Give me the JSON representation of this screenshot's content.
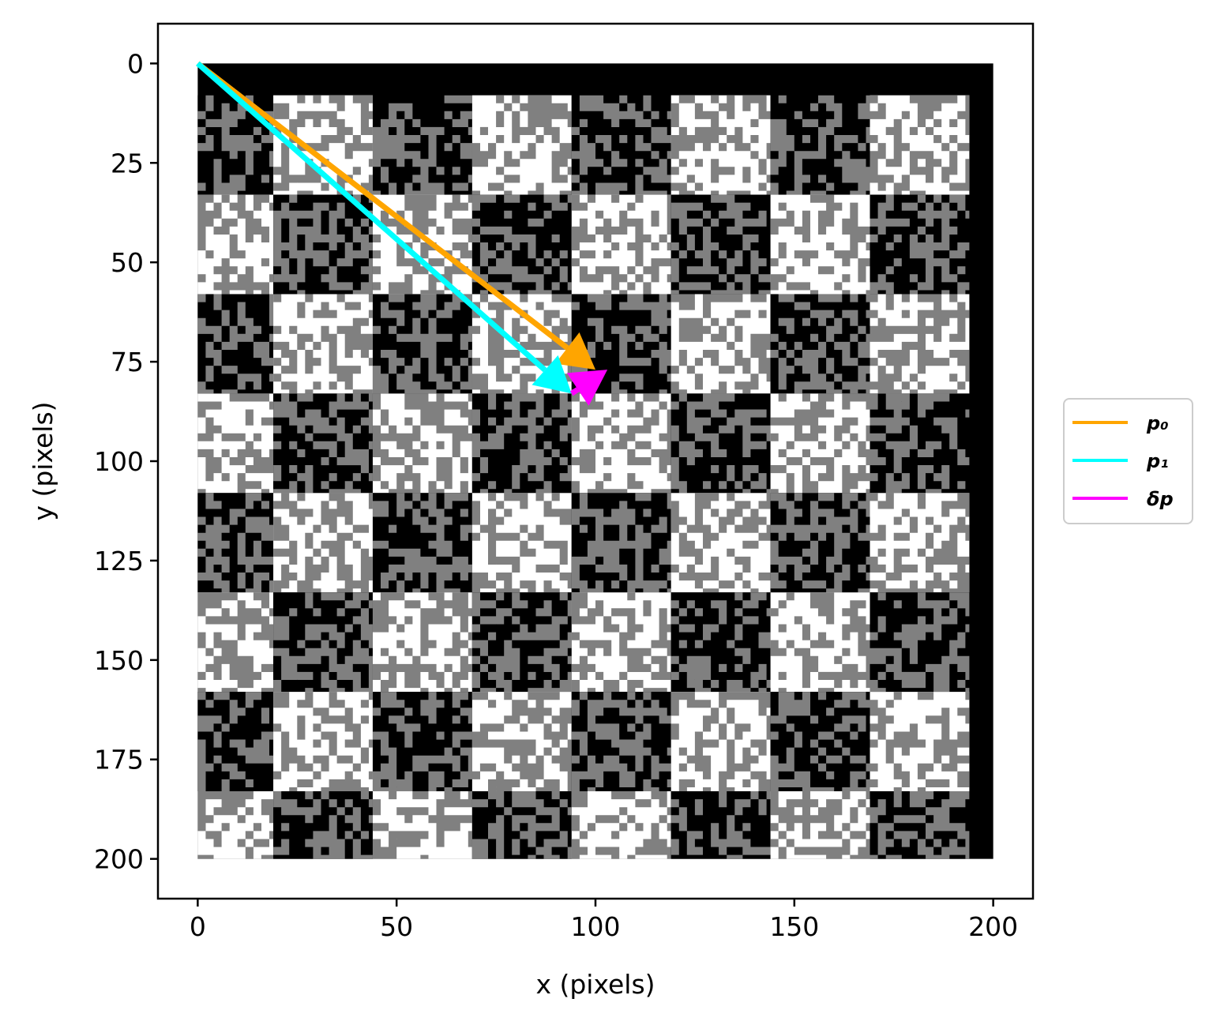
{
  "chart_data": {
    "type": "image_with_vectors",
    "xlabel": "x (pixels)",
    "ylabel": "y (pixels)",
    "xlim": [
      -10,
      210
    ],
    "ylim": [
      210,
      -10
    ],
    "xticks": [
      0,
      50,
      100,
      150,
      200
    ],
    "yticks": [
      0,
      25,
      50,
      75,
      100,
      125,
      150,
      175,
      200
    ],
    "grid": false,
    "image": {
      "extent": {
        "x": [
          0,
          200
        ],
        "y": [
          0,
          200
        ]
      },
      "checker_origin": {
        "x": 19,
        "y": 8
      },
      "checker_size": 25,
      "checker_rows": 8,
      "checker_cols": 8,
      "right_border_from_x": 194,
      "top_border_to_y": 8,
      "colors": {
        "dark": "#000000",
        "mid": "#808080",
        "light": "#ffffff"
      }
    },
    "vectors": [
      {
        "name": "p0",
        "legend_label": "p₀",
        "color": "#ffa500",
        "from": [
          0,
          0
        ],
        "to": [
          100,
          77
        ]
      },
      {
        "name": "p1",
        "legend_label": "p₁",
        "color": "#00ffff",
        "from": [
          0,
          0
        ],
        "to": [
          94,
          83
        ]
      },
      {
        "name": "dp",
        "legend_label": "δp",
        "color": "#ff00ff",
        "from": [
          94,
          83
        ],
        "to": [
          103,
          77
        ]
      }
    ],
    "legend_position": "center-right outside"
  }
}
